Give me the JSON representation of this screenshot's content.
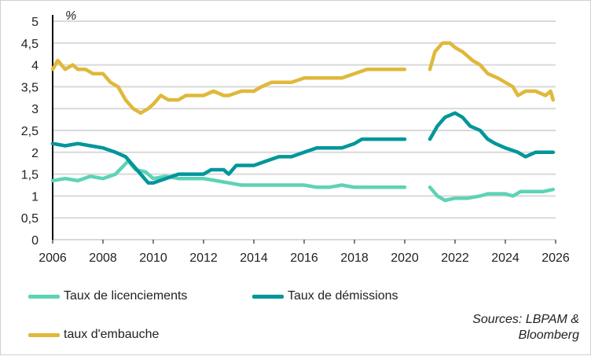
{
  "chart_data": {
    "type": "line",
    "unit_label": "%",
    "xlim": [
      2006,
      2026
    ],
    "ylim": [
      0,
      5
    ],
    "x_ticks": [
      "2006",
      "2008",
      "2010",
      "2012",
      "2014",
      "2016",
      "2018",
      "2020",
      "2022",
      "2024",
      "2026"
    ],
    "y_ticks": [
      "0",
      "0,5",
      "1",
      "1,5",
      "2",
      "2,5",
      "3",
      "3,5",
      "4",
      "4,5",
      "5"
    ],
    "grid": true,
    "legend_position": "bottom",
    "series": [
      {
        "name": "Taux de licenciements",
        "color": "#5dd3b6",
        "points": [
          [
            2006,
            1.35
          ],
          [
            2006.5,
            1.4
          ],
          [
            2007,
            1.35
          ],
          [
            2007.5,
            1.45
          ],
          [
            2008,
            1.4
          ],
          [
            2008.5,
            1.5
          ],
          [
            2009,
            1.8
          ],
          [
            2009.3,
            1.6
          ],
          [
            2009.7,
            1.55
          ],
          [
            2010,
            1.4
          ],
          [
            2010.5,
            1.45
          ],
          [
            2011,
            1.4
          ],
          [
            2011.5,
            1.4
          ],
          [
            2012,
            1.4
          ],
          [
            2012.5,
            1.35
          ],
          [
            2013,
            1.3
          ],
          [
            2013.5,
            1.25
          ],
          [
            2014,
            1.25
          ],
          [
            2014.5,
            1.25
          ],
          [
            2015,
            1.25
          ],
          [
            2015.5,
            1.25
          ],
          [
            2016,
            1.25
          ],
          [
            2016.5,
            1.2
          ],
          [
            2017,
            1.2
          ],
          [
            2017.5,
            1.25
          ],
          [
            2018,
            1.2
          ],
          [
            2018.5,
            1.2
          ],
          [
            2019,
            1.2
          ],
          [
            2019.5,
            1.2
          ],
          [
            2020,
            1.2
          ],
          null,
          [
            2021,
            1.2
          ],
          [
            2021.3,
            1.0
          ],
          [
            2021.6,
            0.9
          ],
          [
            2022,
            0.95
          ],
          [
            2022.5,
            0.95
          ],
          [
            2023,
            1.0
          ],
          [
            2023.3,
            1.05
          ],
          [
            2023.7,
            1.05
          ],
          [
            2024,
            1.05
          ],
          [
            2024.3,
            1.0
          ],
          [
            2024.6,
            1.1
          ],
          [
            2025,
            1.1
          ],
          [
            2025.5,
            1.1
          ],
          [
            2025.9,
            1.15
          ]
        ]
      },
      {
        "name": "Taux de démissions",
        "color": "#00969a",
        "points": [
          [
            2006,
            2.2
          ],
          [
            2006.5,
            2.15
          ],
          [
            2007,
            2.2
          ],
          [
            2007.5,
            2.15
          ],
          [
            2008,
            2.1
          ],
          [
            2008.5,
            2.0
          ],
          [
            2008.9,
            1.9
          ],
          [
            2009.2,
            1.7
          ],
          [
            2009.5,
            1.5
          ],
          [
            2009.8,
            1.3
          ],
          [
            2010,
            1.3
          ],
          [
            2010.5,
            1.4
          ],
          [
            2011,
            1.5
          ],
          [
            2011.5,
            1.5
          ],
          [
            2012,
            1.5
          ],
          [
            2012.3,
            1.6
          ],
          [
            2012.8,
            1.6
          ],
          [
            2013,
            1.5
          ],
          [
            2013.3,
            1.7
          ],
          [
            2013.7,
            1.7
          ],
          [
            2014,
            1.7
          ],
          [
            2014.5,
            1.8
          ],
          [
            2015,
            1.9
          ],
          [
            2015.5,
            1.9
          ],
          [
            2016,
            2.0
          ],
          [
            2016.5,
            2.1
          ],
          [
            2017,
            2.1
          ],
          [
            2017.5,
            2.1
          ],
          [
            2018,
            2.2
          ],
          [
            2018.3,
            2.3
          ],
          [
            2019,
            2.3
          ],
          [
            2019.5,
            2.3
          ],
          [
            2020,
            2.3
          ],
          null,
          [
            2021,
            2.3
          ],
          [
            2021.3,
            2.6
          ],
          [
            2021.6,
            2.8
          ],
          [
            2022,
            2.9
          ],
          [
            2022.3,
            2.8
          ],
          [
            2022.6,
            2.6
          ],
          [
            2023,
            2.5
          ],
          [
            2023.3,
            2.3
          ],
          [
            2023.6,
            2.2
          ],
          [
            2024,
            2.1
          ],
          [
            2024.5,
            2.0
          ],
          [
            2024.8,
            1.9
          ],
          [
            2025.2,
            2.0
          ],
          [
            2025.6,
            2.0
          ],
          [
            2025.9,
            2.0
          ]
        ]
      },
      {
        "name": "taux d'embauche",
        "color": "#e0b83a",
        "points": [
          [
            2006,
            3.9
          ],
          [
            2006.2,
            4.1
          ],
          [
            2006.5,
            3.9
          ],
          [
            2006.8,
            4.0
          ],
          [
            2007,
            3.9
          ],
          [
            2007.3,
            3.9
          ],
          [
            2007.6,
            3.8
          ],
          [
            2008,
            3.8
          ],
          [
            2008.3,
            3.6
          ],
          [
            2008.6,
            3.5
          ],
          [
            2008.9,
            3.2
          ],
          [
            2009.2,
            3.0
          ],
          [
            2009.5,
            2.9
          ],
          [
            2009.8,
            3.0
          ],
          [
            2010,
            3.1
          ],
          [
            2010.3,
            3.3
          ],
          [
            2010.6,
            3.2
          ],
          [
            2011,
            3.2
          ],
          [
            2011.3,
            3.3
          ],
          [
            2011.8,
            3.3
          ],
          [
            2012,
            3.3
          ],
          [
            2012.4,
            3.4
          ],
          [
            2012.8,
            3.3
          ],
          [
            2013,
            3.3
          ],
          [
            2013.5,
            3.4
          ],
          [
            2014,
            3.4
          ],
          [
            2014.3,
            3.5
          ],
          [
            2014.7,
            3.6
          ],
          [
            2015,
            3.6
          ],
          [
            2015.5,
            3.6
          ],
          [
            2016,
            3.7
          ],
          [
            2016.5,
            3.7
          ],
          [
            2017,
            3.7
          ],
          [
            2017.5,
            3.7
          ],
          [
            2018,
            3.8
          ],
          [
            2018.5,
            3.9
          ],
          [
            2019,
            3.9
          ],
          [
            2019.5,
            3.9
          ],
          [
            2020,
            3.9
          ],
          null,
          [
            2021,
            3.9
          ],
          [
            2021.2,
            4.3
          ],
          [
            2021.5,
            4.5
          ],
          [
            2021.8,
            4.5
          ],
          [
            2022,
            4.4
          ],
          [
            2022.3,
            4.3
          ],
          [
            2022.7,
            4.1
          ],
          [
            2023,
            4.0
          ],
          [
            2023.3,
            3.8
          ],
          [
            2023.7,
            3.7
          ],
          [
            2024,
            3.6
          ],
          [
            2024.3,
            3.5
          ],
          [
            2024.5,
            3.3
          ],
          [
            2024.8,
            3.4
          ],
          [
            2025.2,
            3.4
          ],
          [
            2025.6,
            3.3
          ],
          [
            2025.8,
            3.4
          ],
          [
            2025.9,
            3.2
          ]
        ]
      }
    ]
  },
  "source_line1": "Sources: LBPAM &",
  "source_line2": "Bloomberg"
}
